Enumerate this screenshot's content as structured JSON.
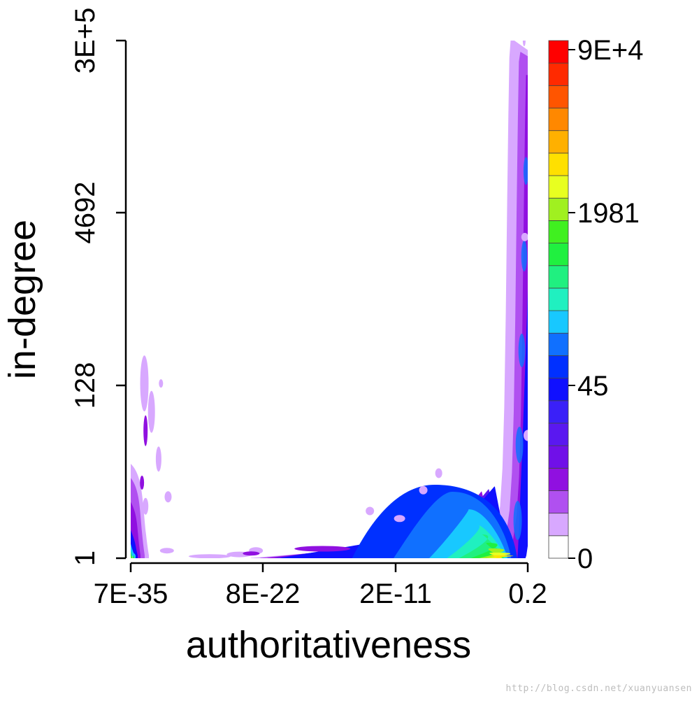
{
  "chart_data": {
    "type": "heatmap",
    "subtype": "filled-contour density",
    "xlabel": "authoritativeness",
    "ylabel": "in-degree",
    "x_scale": "log",
    "y_scale": "log",
    "x_tick_labels": [
      "7E-35",
      "8E-22",
      "2E-11",
      "0.2"
    ],
    "y_tick_labels": [
      "1",
      "128",
      "4692",
      "3E+5"
    ],
    "colorbar": {
      "scale": "log",
      "tick_labels": [
        "0",
        "45",
        "1981",
        "9E+4"
      ],
      "level_colors": [
        "#ffffff",
        "#d8a8ff",
        "#b050f0",
        "#9010e0",
        "#7010e8",
        "#5a18f0",
        "#3a20f8",
        "#1010ff",
        "#0030ff",
        "#1070ff",
        "#18c8ff",
        "#20f0c0",
        "#20f080",
        "#20f040",
        "#40f020",
        "#a0f020",
        "#e8ff20",
        "#ffe000",
        "#ffb000",
        "#ff8800",
        "#ff5500",
        "#ff2a00",
        "#ff0000"
      ]
    },
    "grid": false,
    "legend": "colorbar-right",
    "regions": {
      "main_ridge_upper_curve": [
        [
          -2.5,
          0
        ],
        [
          -1.9,
          0.05
        ],
        [
          -1.35,
          0.25
        ],
        [
          -1.0,
          0.55
        ],
        [
          -0.8,
          0.95
        ],
        [
          -0.65,
          1.6
        ],
        [
          -0.52,
          2.6
        ],
        [
          -0.4,
          3.8
        ],
        [
          -0.3,
          4.7
        ],
        [
          -0.22,
          5.3
        ],
        [
          -0.1,
          5.5
        ]
      ],
      "left_column_top_at_log_x_min": 0.85
    }
  },
  "watermark": "http://blog.csdn.net/xuanyuansen"
}
